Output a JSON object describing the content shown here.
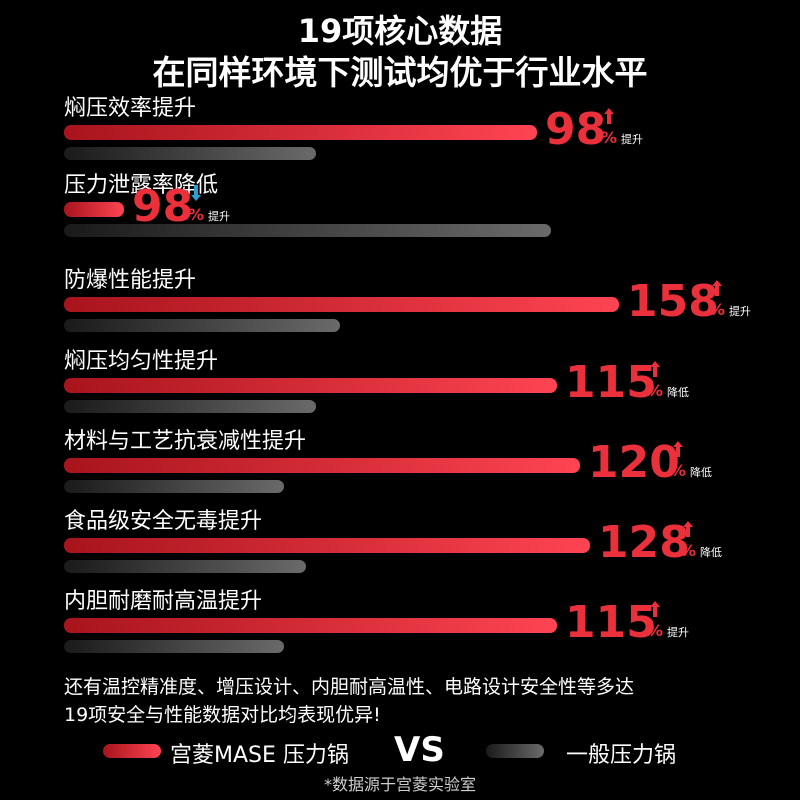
{
  "header": {
    "title_line1": "19项核心数据",
    "title_line2": "在同样环境下测试均优于行业水平"
  },
  "chart_data": {
    "type": "bar",
    "series": [
      {
        "name": "宫菱MASE 压力锅",
        "values": [
          98,
          98,
          158,
          115,
          120,
          128,
          115
        ]
      },
      {
        "name": "一般压力锅"
      }
    ],
    "categories": [
      "焖压效率提升",
      "压力泄露率降低",
      "防爆性能提升",
      "焖压均匀性提升",
      "材料与工艺抗衰减性提升",
      "食品级安全无毒提升",
      "内胆耐磨耐高温提升"
    ],
    "rows": [
      {
        "label": "焖压效率提升",
        "value": 98,
        "unit": "%",
        "direction": "up",
        "note": "提升"
      },
      {
        "label": "压力泄露率降低",
        "value": 98,
        "unit": "%",
        "direction": "down",
        "note": "提升"
      },
      {
        "label": "防爆性能提升",
        "value": 158,
        "unit": "%",
        "direction": "up",
        "note": "提升"
      },
      {
        "label": "焖压均匀性提升",
        "value": 115,
        "unit": "%",
        "direction": "up",
        "note": "降低"
      },
      {
        "label": "材料与工艺抗衰减性提升",
        "value": 120,
        "unit": "%",
        "direction": "up",
        "note": "降低"
      },
      {
        "label": "食品级安全无毒提升",
        "value": 128,
        "unit": "%",
        "direction": "up",
        "note": "降低"
      },
      {
        "label": "内胆耐磨耐高温提升",
        "value": 115,
        "unit": "%",
        "direction": "up",
        "note": "提升"
      }
    ],
    "colors": {
      "mase": "#e9303b",
      "generic": "#555555",
      "down_arrow": "#2a9fd6"
    }
  },
  "footer": {
    "line1": "还有温控精准度、增压设计、内胆耐高温性、电路设计安全性等多达",
    "line2": "19项安全与性能数据对比均表现优异!",
    "legend_mase": "宫菱MASE 压力锅",
    "vs": "VS",
    "legend_generic": "一般压力锅",
    "source": "*数据源于宫菱实验室"
  }
}
